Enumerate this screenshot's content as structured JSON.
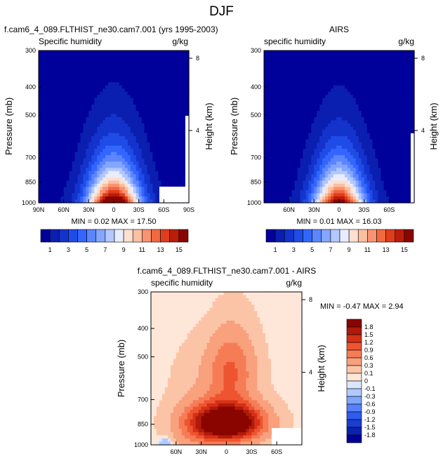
{
  "figure_title": "DJF",
  "chart_data": [
    {
      "type": "heatmap",
      "title": "f.cam6_4_089.FLTHIST_ne30.cam7.001 (yrs 1995-2003)",
      "left_label": "Specific humidity",
      "right_label": "g/kg",
      "ylabel": "Pressure (mb)",
      "ylabel_right": "Height (km)",
      "x_tick_labels": [
        "90N",
        "60N",
        "30N",
        "0",
        "30S",
        "60S",
        "90S"
      ],
      "x_tick_values": [
        90,
        60,
        30,
        0,
        -30,
        -60,
        -90
      ],
      "y_tick_labels": [
        "300",
        "400",
        "500",
        "700",
        "850",
        "1000"
      ],
      "y_tick_values": [
        300,
        400,
        500,
        700,
        850,
        1000
      ],
      "y_right_tick_labels": [
        "8",
        "4"
      ],
      "y_right_tick_values": [
        8,
        4
      ],
      "xlim": [
        90,
        -90
      ],
      "ylim": [
        1000,
        300
      ],
      "stats_text": "MIN =  0.02  MAX =  17.50",
      "min": 0.02,
      "max": 17.5,
      "field": {
        "peak": 17.5,
        "center_lat": 0,
        "lat_width": 32,
        "scale_height": 1.0,
        "dry": 0.3
      },
      "colorbar": {
        "orientation": "horizontal",
        "labels": [
          "1",
          "3",
          "5",
          "7",
          "9",
          "11",
          "13",
          "15"
        ],
        "levels": [
          1,
          2,
          3,
          4,
          5,
          6,
          7,
          8,
          9,
          10,
          11,
          12,
          13,
          14,
          15
        ],
        "colors": [
          "#00009a",
          "#0a1fb0",
          "#1433cc",
          "#1f4ce6",
          "#3366ff",
          "#5c86ff",
          "#85a6ff",
          "#b3c8ff",
          "#e8eeff",
          "#fde0cf",
          "#fbbfa1",
          "#f99372",
          "#f2683f",
          "#e03d1c",
          "#bb1d0b",
          "#8a0500"
        ]
      }
    },
    {
      "type": "heatmap",
      "title": "AIRS",
      "left_label": "specific humidity",
      "right_label": "g/kg",
      "ylabel": "Pressure (mb)",
      "ylabel_right": "Height (km)",
      "x_tick_labels": [
        "60N",
        "30N",
        "0",
        "30S",
        "60S"
      ],
      "x_tick_values": [
        60,
        30,
        0,
        -30,
        -60
      ],
      "y_tick_labels": [
        "300",
        "400",
        "500",
        "700",
        "850",
        "1000"
      ],
      "y_tick_values": [
        300,
        400,
        500,
        700,
        850,
        1000
      ],
      "y_right_tick_labels": [
        "8",
        "4"
      ],
      "y_right_tick_values": [
        8,
        4
      ],
      "xlim": [
        90,
        -90
      ],
      "ylim": [
        1000,
        300
      ],
      "stats_text": "MIN =  0.01  MAX =  16.03",
      "min": 0.01,
      "max": 16.03,
      "field": {
        "peak": 16.0,
        "center_lat": 0,
        "lat_width": 31,
        "scale_height": 0.98,
        "dry": 0.25
      },
      "colorbar": {
        "orientation": "horizontal",
        "labels": [
          "1",
          "3",
          "5",
          "7",
          "9",
          "11",
          "13",
          "15"
        ],
        "levels": [
          1,
          2,
          3,
          4,
          5,
          6,
          7,
          8,
          9,
          10,
          11,
          12,
          13,
          14,
          15
        ],
        "colors": [
          "#00009a",
          "#0a1fb0",
          "#1433cc",
          "#1f4ce6",
          "#3366ff",
          "#5c86ff",
          "#85a6ff",
          "#b3c8ff",
          "#e8eeff",
          "#fde0cf",
          "#fbbfa1",
          "#f99372",
          "#f2683f",
          "#e03d1c",
          "#bb1d0b",
          "#8a0500"
        ]
      }
    },
    {
      "type": "heatmap",
      "title": "f.cam6_4_089.FLTHIST_ne30.cam7.001 - AIRS",
      "left_label": "specific humidity",
      "right_label": "g/kg",
      "ylabel": "Pressure (mb)",
      "ylabel_right": "Height (km)",
      "x_tick_labels": [
        "60N",
        "30N",
        "0",
        "30S",
        "60S"
      ],
      "x_tick_values": [
        60,
        30,
        0,
        -30,
        -60
      ],
      "y_tick_labels": [
        "300",
        "400",
        "500",
        "700",
        "850",
        "1000"
      ],
      "y_tick_values": [
        300,
        400,
        500,
        700,
        850,
        1000
      ],
      "y_right_tick_labels": [
        "8",
        "4"
      ],
      "y_right_tick_values": [
        8,
        4
      ],
      "xlim": [
        90,
        -90
      ],
      "ylim": [
        1000,
        300
      ],
      "stats_text": "MIN = -0.47  MAX =  2.94",
      "min": -0.47,
      "max": 2.94,
      "colorbar": {
        "orientation": "vertical",
        "labels": [
          "1.8",
          "1.5",
          "1.2",
          "0.9",
          "0.6",
          "0.3",
          "0.1",
          "0",
          "-0.1",
          "-0.3",
          "-0.6",
          "-0.9",
          "-1.2",
          "-1.5",
          "-1.8"
        ],
        "levels": [
          1.8,
          1.5,
          1.2,
          0.9,
          0.6,
          0.3,
          0.1,
          0,
          -0.1,
          -0.3,
          -0.6,
          -0.9,
          -1.2,
          -1.5,
          -1.8
        ],
        "colors": [
          "#8a0500",
          "#b01a0a",
          "#d53117",
          "#ee5430",
          "#f57c55",
          "#f9a07d",
          "#fcc4a7",
          "#fee7d8",
          "#d9e6ff",
          "#aecaff",
          "#7fa5ff",
          "#5580ff",
          "#2f5cf0",
          "#1a3dd2",
          "#0b22b0",
          "#000095"
        ]
      }
    }
  ]
}
